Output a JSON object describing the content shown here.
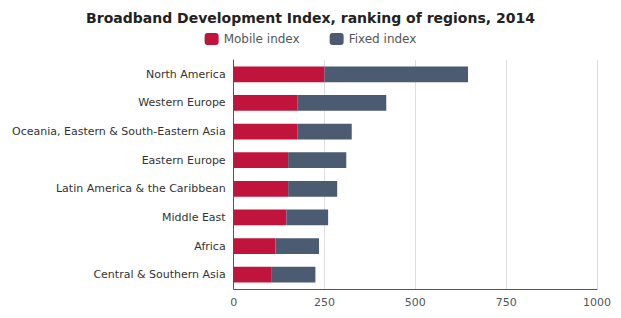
{
  "chart_data": {
    "type": "bar",
    "title": "Broadband Development Index, ranking of regions, 2014",
    "orientation": "horizontal",
    "stacked": true,
    "categories": [
      "North America",
      "Western Europe",
      "Oceania, Eastern & South-Eastern Asia",
      "Eastern Europe",
      "Latin America & the Caribbean",
      "Middle East",
      "Africa",
      "Central & Southern Asia"
    ],
    "series": [
      {
        "name": "Mobile index",
        "color": "#C0143C",
        "values": [
          250,
          175,
          175,
          150,
          150,
          145,
          115,
          105
        ]
      },
      {
        "name": "Fixed index",
        "color": "#4B5B72",
        "values": [
          395,
          245,
          150,
          160,
          135,
          115,
          120,
          120
        ]
      }
    ],
    "xlim": [
      0,
      1000
    ],
    "xticks": [
      0,
      250,
      500,
      750,
      1000
    ],
    "grid": true,
    "legend": "top"
  }
}
